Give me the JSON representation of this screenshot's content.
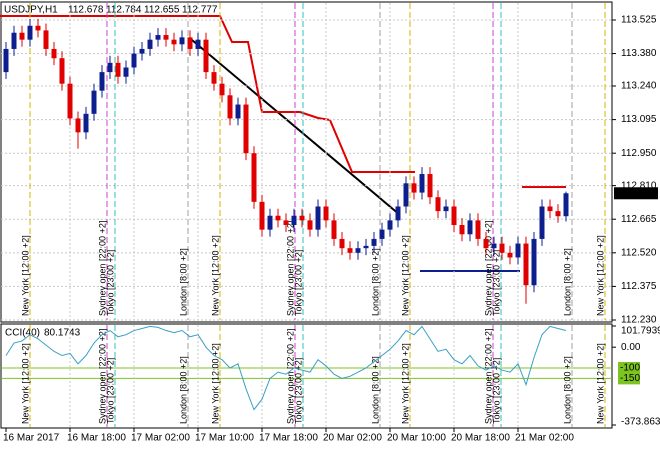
{
  "chart_data": {
    "type": "candlestick",
    "title": "USDJPY,H1",
    "categories": [
      "16 Mar 2017",
      null,
      null,
      null,
      null,
      null,
      null,
      null,
      "16 Mar 18:00",
      null,
      null,
      null,
      null,
      null,
      null,
      null,
      "17 Mar 02:00",
      null,
      null,
      null,
      null,
      null,
      null,
      null,
      "17 Mar 10:00",
      null,
      null,
      null,
      null,
      null,
      null,
      null,
      "17 Mar 18:00",
      null,
      null,
      null,
      null,
      null,
      null,
      null,
      "20 Mar 02:00",
      null,
      null,
      null,
      null,
      null,
      null,
      null,
      "20 Mar 10:00",
      null,
      null,
      null,
      null,
      null,
      null,
      null,
      "20 Mar 18:00",
      null,
      null,
      null,
      null,
      null,
      null,
      null,
      "21 Mar 02:00",
      null,
      null,
      null,
      null,
      null,
      null
    ],
    "open": [
      113.3,
      113.4,
      113.47,
      113.44,
      113.5,
      113.48,
      113.4,
      113.36,
      113.25,
      113.1,
      113.04,
      113.12,
      113.22,
      113.3,
      113.34,
      113.28,
      113.32,
      113.38,
      113.4,
      113.44,
      113.46,
      113.44,
      113.42,
      113.45,
      113.4,
      113.44,
      113.3,
      113.25,
      113.2,
      113.1,
      113.16,
      112.95,
      112.74,
      112.62,
      112.68,
      112.66,
      112.64,
      112.68,
      112.66,
      112.62,
      112.72,
      112.66,
      112.58,
      112.54,
      112.52,
      112.54,
      112.55,
      112.58,
      112.62,
      112.66,
      112.72,
      112.82,
      112.78,
      112.86,
      112.76,
      112.7,
      112.72,
      112.64,
      112.6,
      112.66,
      112.58,
      112.54,
      112.56,
      112.52,
      112.5,
      112.56,
      112.38,
      112.58,
      112.72,
      112.7,
      112.678
    ],
    "high": [
      113.43,
      113.5,
      113.5,
      113.53,
      113.53,
      113.51,
      113.43,
      113.39,
      113.28,
      113.13,
      113.15,
      113.25,
      113.33,
      113.37,
      113.37,
      113.35,
      113.41,
      113.43,
      113.47,
      113.49,
      113.49,
      113.47,
      113.48,
      113.48,
      113.47,
      113.47,
      113.33,
      113.28,
      113.23,
      113.19,
      113.19,
      112.98,
      112.77,
      112.71,
      112.71,
      112.69,
      112.71,
      112.71,
      112.69,
      112.75,
      112.75,
      112.69,
      112.61,
      112.57,
      112.57,
      112.58,
      112.61,
      112.65,
      112.69,
      112.75,
      112.85,
      112.85,
      112.89,
      112.89,
      112.79,
      112.75,
      112.75,
      112.67,
      112.69,
      112.69,
      112.61,
      112.59,
      112.59,
      112.55,
      112.59,
      112.59,
      112.61,
      112.75,
      112.75,
      112.73,
      112.784
    ],
    "low": [
      113.27,
      113.37,
      113.41,
      113.41,
      113.45,
      113.37,
      113.33,
      113.22,
      113.07,
      112.97,
      113.01,
      113.09,
      113.19,
      113.27,
      113.25,
      113.25,
      113.29,
      113.35,
      113.37,
      113.41,
      113.41,
      113.39,
      113.39,
      113.37,
      113.37,
      113.27,
      113.22,
      113.17,
      113.07,
      113.07,
      112.92,
      112.71,
      112.59,
      112.59,
      112.63,
      112.61,
      112.61,
      112.63,
      112.59,
      112.59,
      112.63,
      112.55,
      112.51,
      112.49,
      112.49,
      112.51,
      112.52,
      112.55,
      112.59,
      112.63,
      112.69,
      112.75,
      112.75,
      112.73,
      112.67,
      112.67,
      112.61,
      112.57,
      112.57,
      112.55,
      112.51,
      112.51,
      112.49,
      112.47,
      112.47,
      112.3,
      112.35,
      112.55,
      112.67,
      112.65,
      112.655
    ],
    "close": [
      113.4,
      113.47,
      113.44,
      113.5,
      113.48,
      113.4,
      113.36,
      113.25,
      113.1,
      113.04,
      113.12,
      113.22,
      113.3,
      113.34,
      113.28,
      113.32,
      113.38,
      113.4,
      113.44,
      113.46,
      113.44,
      113.42,
      113.45,
      113.4,
      113.44,
      113.3,
      113.25,
      113.2,
      113.1,
      113.16,
      112.95,
      112.74,
      112.62,
      112.68,
      112.66,
      112.64,
      112.68,
      112.66,
      112.62,
      112.72,
      112.66,
      112.58,
      112.54,
      112.52,
      112.54,
      112.55,
      112.58,
      112.62,
      112.66,
      112.72,
      112.82,
      112.78,
      112.86,
      112.76,
      112.7,
      112.72,
      112.64,
      112.6,
      112.66,
      112.58,
      112.54,
      112.56,
      112.52,
      112.5,
      112.56,
      112.38,
      112.58,
      112.72,
      112.7,
      112.678,
      112.777
    ],
    "up_color": "#0d1f8f",
    "down_color": "#e00000",
    "ylim": [
      112.23,
      113.594
    ],
    "yticks": [
      113.525,
      {
        "value": 113.38,
        "label": "113.380"
      },
      {
        "value": 113.24,
        "label": "113.240"
      },
      113.095,
      {
        "value": 112.95,
        "label": "112.950"
      },
      {
        "value": 112.81,
        "label": "112.810"
      },
      112.665,
      {
        "value": 112.52,
        "label": "112.520"
      },
      112.375,
      {
        "value": 112.23,
        "label": "112.230"
      }
    ],
    "grid": true,
    "sessions": [
      "New York  [12:00 +2]",
      "Sydney open  [22:00 +2]",
      "Tokyo  [23:00 +2]",
      "London  [8:00 +2]",
      "New York  [12:00 +2]",
      "Sydney open  [22:00 +2]",
      "Tokyo  [23:00 +2]",
      "London  [8:00 +2]",
      "New York  [12:00 +2]",
      "Sydney open  [22:00 +2]",
      "Tokyo  [23:00 +2]",
      "London  [8:00 +2]",
      "New York  [12:00 +2]"
    ],
    "indicator": {
      "name": "CCI(40)",
      "color": "#3a9fc6",
      "values": [
        -40,
        20,
        30,
        60,
        40,
        10,
        -20,
        -40,
        -30,
        -80,
        -40,
        20,
        60,
        80,
        50,
        60,
        80,
        90,
        100,
        95,
        80,
        70,
        80,
        50,
        60,
        0,
        -40,
        -60,
        -100,
        -80,
        -200,
        -300,
        -250,
        -150,
        -120,
        -130,
        -100,
        -110,
        -120,
        -60,
        -90,
        -130,
        -150,
        -140,
        -120,
        -100,
        -70,
        -40,
        -10,
        30,
        80,
        60,
        100,
        40,
        -20,
        -10,
        -60,
        -80,
        -40,
        -90,
        -110,
        -90,
        -110,
        -120,
        -80,
        -180,
        -50,
        60,
        100,
        90,
        80.1743
      ],
      "ylim": [
        -373.8636,
        101.7939
      ],
      "yticks": [
        101.7939,
        {
          "value": 0,
          "label": "0.00"
        },
        -373.8636
      ],
      "levels": [
        -100,
        -150
      ],
      "level_color": "#7cc420"
    }
  }
}
